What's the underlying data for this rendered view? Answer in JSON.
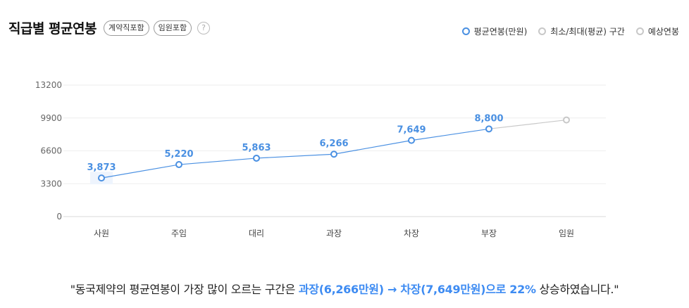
{
  "header": {
    "title": "직급별 평균연봉",
    "badges": [
      "계약직포함",
      "임원포함"
    ],
    "help": "?"
  },
  "legend": {
    "items": [
      {
        "label": "평균연봉(만원)",
        "color": "#4a90e2"
      },
      {
        "label": "최소/최대(평균) 구간",
        "color": "#c8c8c8"
      },
      {
        "label": "예상연봉",
        "color": "#c8c8c8"
      }
    ]
  },
  "chart_data": {
    "type": "line",
    "categories": [
      "사원",
      "주임",
      "대리",
      "과장",
      "차장",
      "부장",
      "임원"
    ],
    "series": [
      {
        "name": "평균연봉(만원)",
        "values": [
          3873,
          5220,
          5863,
          6266,
          7649,
          8800,
          null
        ],
        "labels": [
          "3,873",
          "5,220",
          "5,863",
          "6,266",
          "7,649",
          "8,800",
          null
        ],
        "color": "#4a90e2"
      },
      {
        "name": "예상연봉",
        "values": [
          null,
          null,
          null,
          null,
          null,
          8800,
          9700
        ],
        "color": "#c8c8c8"
      }
    ],
    "yticks": [
      0,
      3300,
      6600,
      9900,
      13200
    ],
    "ylim": [
      0,
      13200
    ],
    "grid": true
  },
  "summary": {
    "prefix": "\"동국제약의 평균연봉이 가장 많이 오르는 구간은 ",
    "from": "과장(6,266만원)",
    "arrow": " → ",
    "to": "차장(7,649만원)으로 22%",
    "suffix": " 상승하였습니다.\""
  }
}
